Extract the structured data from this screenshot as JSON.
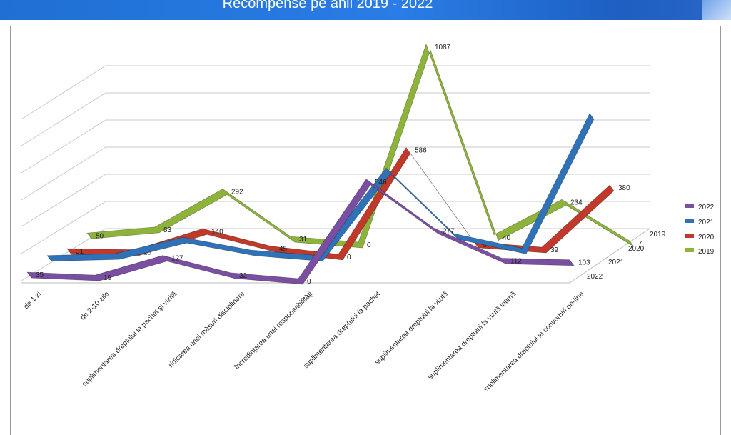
{
  "header": {
    "title": "Recompense pe anii 2019 - 2022"
  },
  "chart_data": {
    "type": "line",
    "title": "Recompense pe anii 2019 - 2022",
    "categories": [
      "de 1 zi",
      "de 2-10 zile",
      "suplimentarea dreptului la pachet şi vizită",
      "ridicarea unei măsuri disciplinare",
      "încredinţarea unei responsabilităţi",
      "suplimentarea dreptului la pachet",
      "suplimentarea dreptului la vizită",
      "suplimentarea dreptului la  vizită intimă",
      "suplimentarea dreptului la convorbiri on-line"
    ],
    "series": [
      {
        "name": "2022",
        "color": "#7a4ea0",
        "values": [
          35,
          19,
          127,
          32,
          0,
          546,
          277,
          112,
          103
        ],
        "labels": [
          "35",
          "19",
          "127",
          "32",
          "0",
          "546",
          "277",
          "112",
          "103"
        ]
      },
      {
        "name": "2021",
        "color": "#2f72b8",
        "values": [
          60,
          70,
          160,
          90,
          60,
          540,
          180,
          100,
          840
        ],
        "labels": [
          "",
          "",
          "",
          "",
          "",
          "",
          "",
          "",
          ""
        ]
      },
      {
        "name": "2020",
        "color": "#c0392b",
        "values": [
          31,
          25,
          140,
          45,
          0,
          586,
          67,
          39,
          380
        ],
        "labels": [
          "31",
          "25",
          "140",
          "45",
          "0",
          "586",
          "67",
          "39",
          "380"
        ]
      },
      {
        "name": "2019",
        "color": "#8db33a",
        "values": [
          50,
          83,
          292,
          31,
          0,
          1087,
          40,
          234,
          7
        ],
        "labels": [
          "50",
          "83",
          "292",
          "31",
          "0",
          "1087",
          "40",
          "234",
          "7"
        ]
      }
    ],
    "depth_labels": [
      "2019",
      "2020",
      "2021",
      "2022"
    ],
    "grid": true,
    "legend": "right"
  }
}
